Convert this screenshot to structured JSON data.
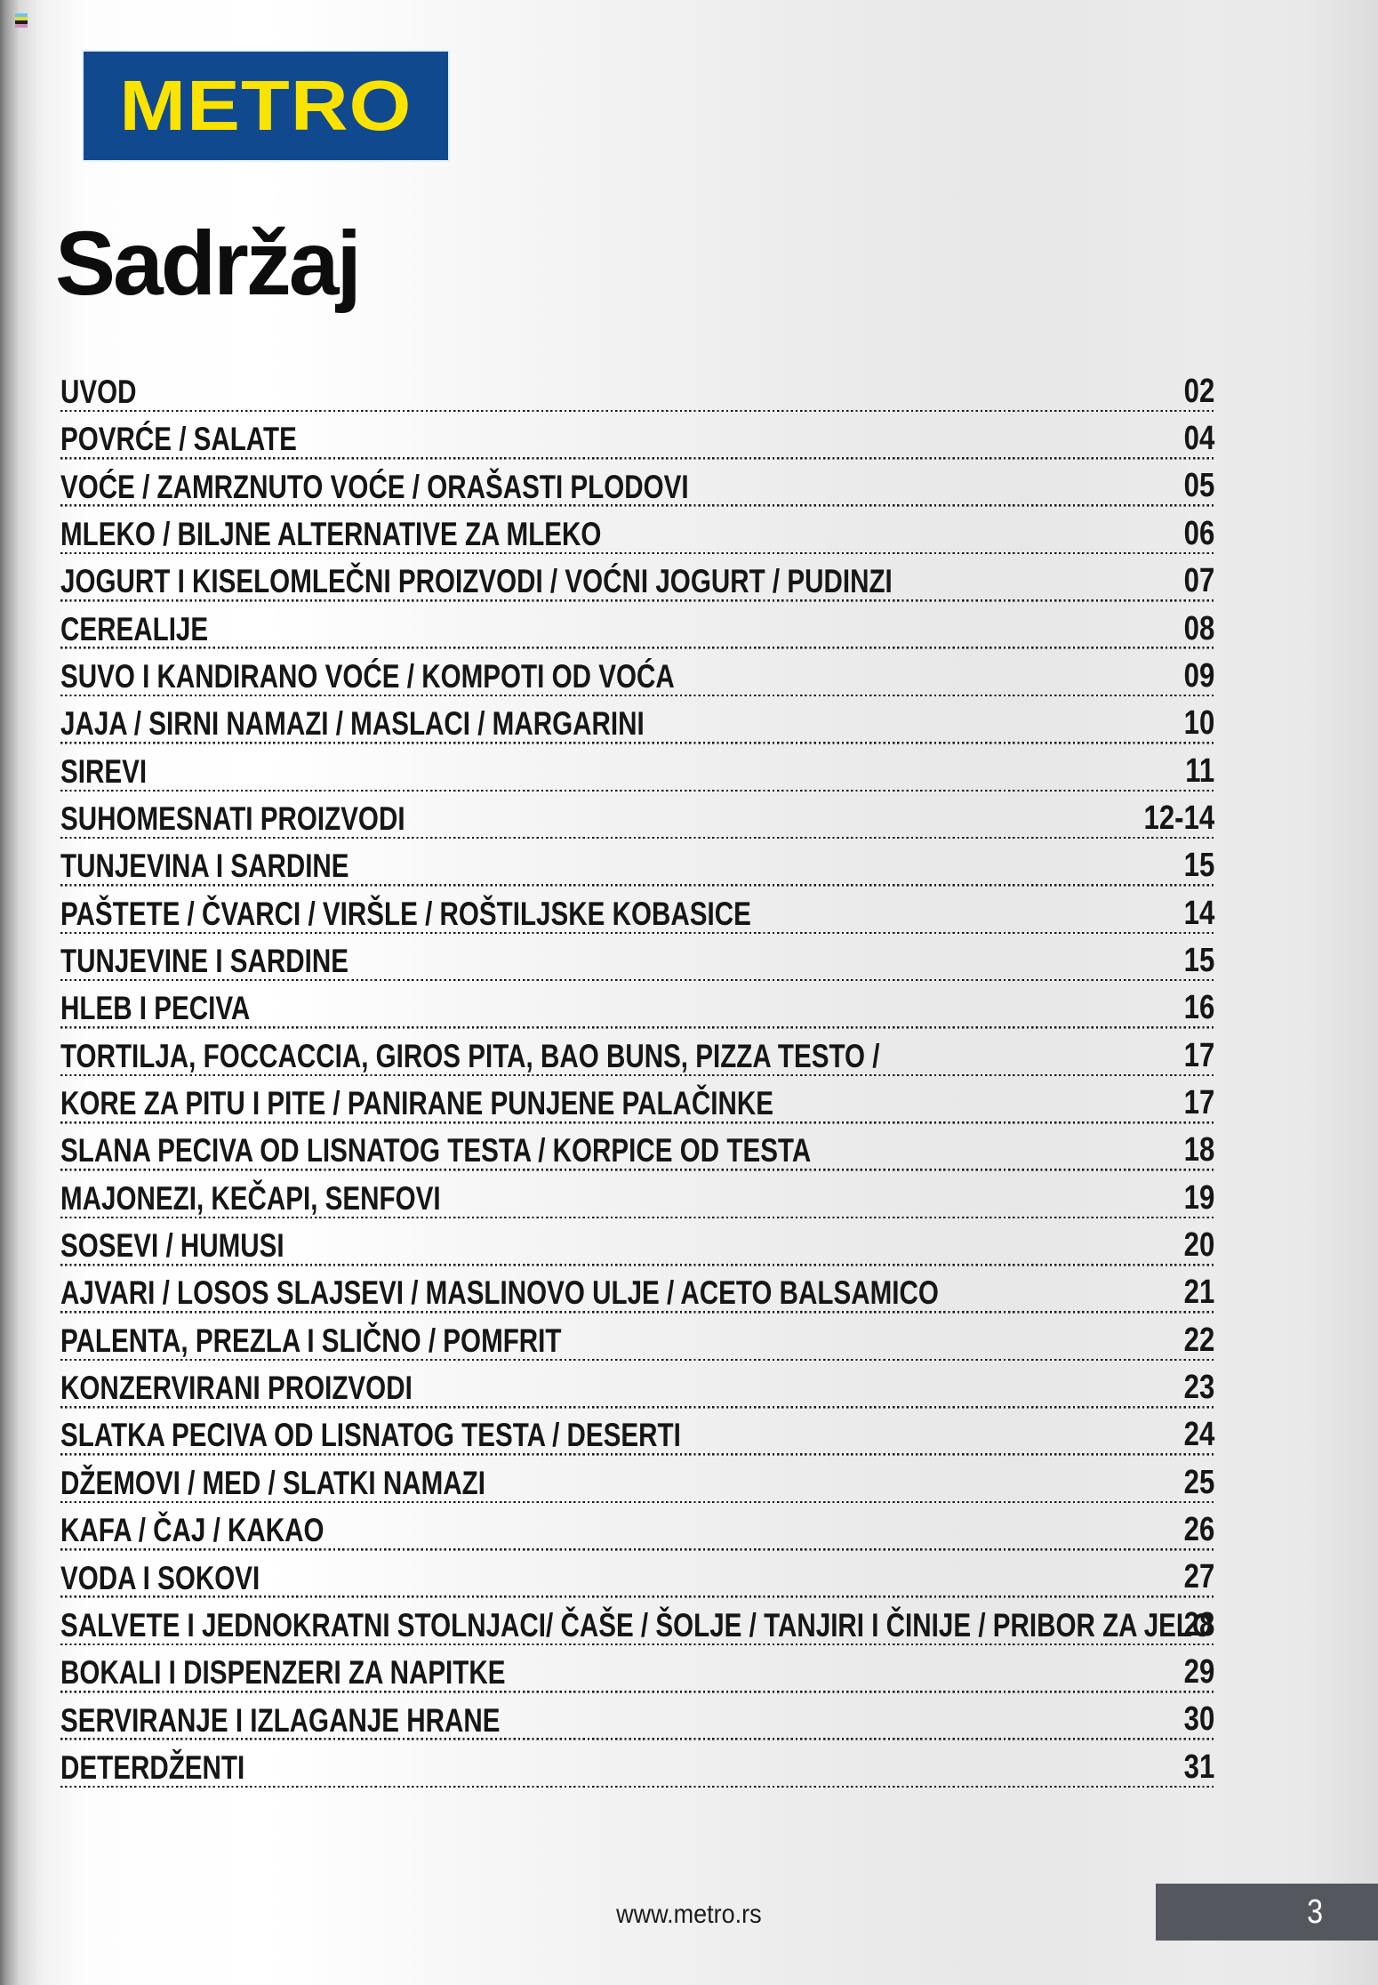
{
  "logo": {
    "text": "METRO"
  },
  "title": "Sadržaj",
  "colors": {
    "metro_blue": "#11498f",
    "metro_yellow": "#fbe300",
    "footer_box_gray": "#54585e",
    "text_black": "#161616"
  },
  "toc": [
    {
      "label": "UVOD",
      "page": "02"
    },
    {
      "label": "POVRĆE / SALATE",
      "page": "04"
    },
    {
      "label": "VOĆE / ZAMRZNUTO VOĆE / ORAŠASTI PLODOVI",
      "page": "05"
    },
    {
      "label": "MLEKO / BILJNE ALTERNATIVE ZA MLEKO",
      "page": "06"
    },
    {
      "label": "JOGURT I KISELOMLEČNI PROIZVODI / VOĆNI JOGURT / PUDINZI",
      "page": "07"
    },
    {
      "label": "CEREALIJE",
      "page": "08"
    },
    {
      "label": "SUVO I KANDIRANO VOĆE / KOMPOTI OD VOĆA",
      "page": "09"
    },
    {
      "label": "JAJA / SIRNI NAMAZI / MASLACI / MARGARINI",
      "page": "10"
    },
    {
      "label": "SIREVI",
      "page": "11"
    },
    {
      "label": "SUHOMESNATI PROIZVODI",
      "page": "12-14"
    },
    {
      "label": "TUNJEVINA I SARDINE",
      "page": "15"
    },
    {
      "label": "PAŠTETE / ČVARCI / VIRŠLE / ROŠTILJSKE KOBASICE",
      "page": "14"
    },
    {
      "label": "TUNJEVINE I SARDINE",
      "page": "15"
    },
    {
      "label": "HLEB I PECIVA",
      "page": "16"
    },
    {
      "label": "TORTILJA, FOCCACCIA, GIROS PITA, BAO BUNS, PIZZA TESTO /",
      "page": "17"
    },
    {
      "label": "KORE ZA PITU I PITE / PANIRANE PUNJENE PALAČINKE",
      "page": "17"
    },
    {
      "label": "SLANA PECIVA OD LISNATOG TESTA / KORPICE OD TESTA",
      "page": "18"
    },
    {
      "label": "MAJONEZI, KEČAPI, SENFOVI",
      "page": "19"
    },
    {
      "label": "SOSEVI / HUMUSI",
      "page": "20"
    },
    {
      "label": "AJVARI / LOSOS SLAJSEVI / MASLINOVO ULJE / ACETO BALSAMICO",
      "page": "21"
    },
    {
      "label": "PALENTA, PREZLA I SLIČNO / POMFRIT",
      "page": "22"
    },
    {
      "label": "KONZERVIRANI PROIZVODI",
      "page": "23"
    },
    {
      "label": "SLATKA PECIVA OD LISNATOG TESTA / DESERTI",
      "page": "24"
    },
    {
      "label": "DŽEMOVI / MED / SLATKI NAMAZI",
      "page": "25"
    },
    {
      "label": "KAFA / ČAJ / KAKAO",
      "page": "26"
    },
    {
      "label": "VODA I SOKOVI",
      "page": "27"
    },
    {
      "label": "SALVETE I JEDNOKRATNI STOLNJACI/ ČAŠE / ŠOLJE / TANJIRI I ČINIJE / PRIBOR ZA JELO",
      "page": "28"
    },
    {
      "label": "BOKALI I DISPENZERI ZA NAPITKE",
      "page": "29"
    },
    {
      "label": "SERVIRANJE I IZLAGANJE HRANE",
      "page": "30"
    },
    {
      "label": "DETERDŽENTI",
      "page": "31"
    }
  ],
  "footer": {
    "website": "www.metro.rs",
    "page_number": "3"
  }
}
